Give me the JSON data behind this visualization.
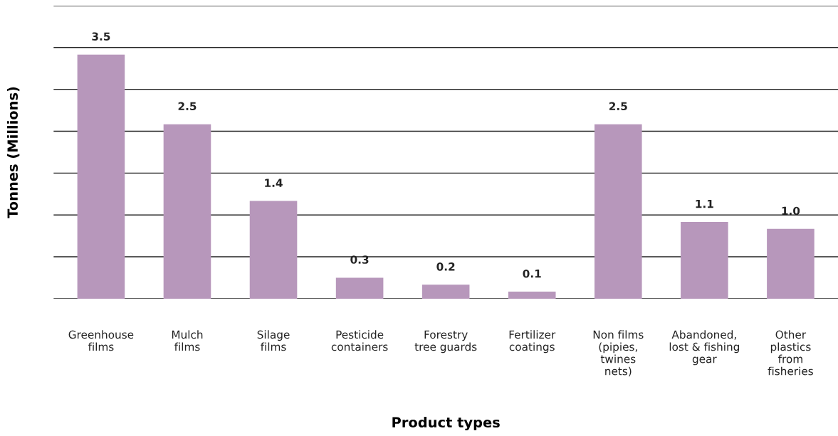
{
  "chart_data": {
    "type": "bar",
    "xlabel": "Product types",
    "ylabel": "Tonnes (Millions)",
    "categories": [
      "Greenhouse\nfilms",
      "Mulch\nfilms",
      "Silage\nfilms",
      "Pesticide\ncontainers",
      "Forestry\ntree guards",
      "Fertilizer\ncoatings",
      "Non films\n(pipies,\ntwines\nnets)",
      "Abandoned,\nlost & fishing\ngear",
      "Other\nplastics\nfrom\nfisheries"
    ],
    "values": [
      3.5,
      2.5,
      1.4,
      0.3,
      0.2,
      0.1,
      2.5,
      1.1,
      1.0
    ],
    "value_labels": [
      "3.5",
      "2.5",
      "1.4",
      "0.3",
      "0.2",
      "0.1",
      "2.5",
      "1.1",
      "1.0"
    ],
    "color": "#b797bb",
    "ylim": [
      0,
      4.2
    ],
    "yticks": [
      {
        "value": 0,
        "label": null
      },
      {
        "value": 0.6,
        "label": null
      },
      {
        "value": 1.2,
        "label": null
      },
      {
        "value": 1.8,
        "label": null
      },
      {
        "value": 2.4,
        "label": null
      },
      {
        "value": 3.0,
        "label": null
      },
      {
        "value": 3.6,
        "label": null
      },
      {
        "value": 4.2,
        "label": null
      }
    ],
    "grid": "y",
    "legend": false
  }
}
